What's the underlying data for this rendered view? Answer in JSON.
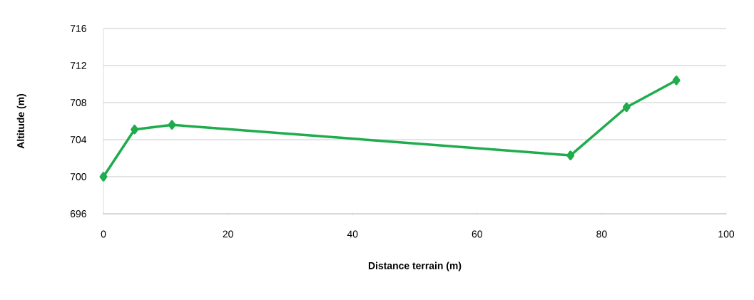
{
  "chart_data": {
    "type": "line",
    "xlabel": "Distance terrain (m)",
    "ylabel": "Altitude (m)",
    "x": [
      0,
      5,
      11,
      75,
      84,
      92
    ],
    "series": [
      {
        "color": "#1fac4d",
        "values": [
          700,
          705.1,
          705.6,
          702.3,
          707.5,
          710.4
        ]
      }
    ],
    "xlim": [
      0,
      100
    ],
    "xticks": [
      0,
      20,
      40,
      60,
      80,
      100
    ],
    "ylim": [
      696,
      716
    ],
    "yticks": [
      696,
      700,
      704,
      708,
      712,
      716
    ],
    "grid": "y",
    "marker": "diamond",
    "line_style": "solid"
  }
}
